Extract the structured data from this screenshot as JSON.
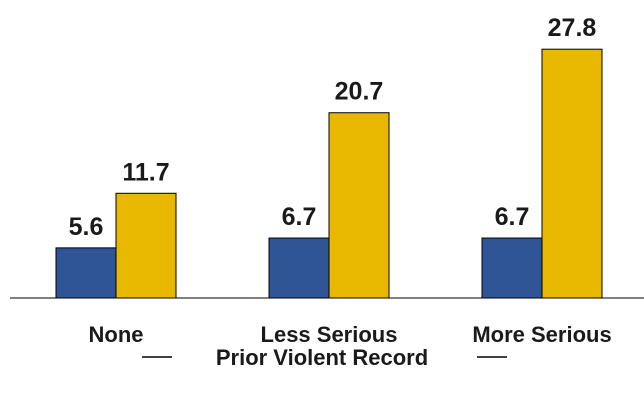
{
  "chart_data": {
    "type": "bar",
    "categories": [
      "None",
      "Less Serious",
      "More Serious"
    ],
    "series": [
      {
        "values": [
          5.6,
          6.7,
          6.7
        ]
      },
      {
        "values": [
          11.7,
          20.7,
          27.8
        ]
      }
    ],
    "title": "",
    "xlabel": "Prior Violent Record",
    "ylabel": "",
    "ylim": [
      0,
      30
    ],
    "grid": false,
    "legend": "none",
    "colors": [
      "#2f5597",
      "#e8b800"
    ]
  }
}
